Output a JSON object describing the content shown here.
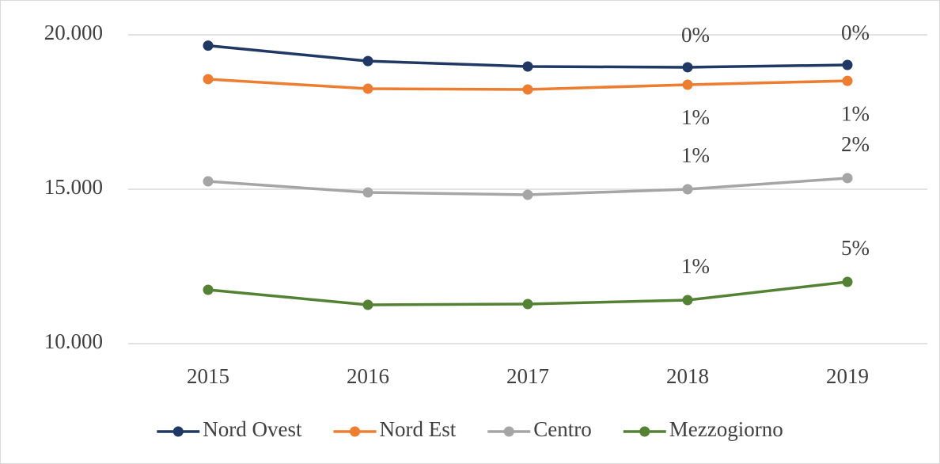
{
  "chart_data": {
    "type": "line",
    "categories": [
      "2015",
      "2016",
      "2017",
      "2018",
      "2019"
    ],
    "series": [
      {
        "name": "Nord Ovest",
        "color": "#203864",
        "values": [
          19650,
          19150,
          18975,
          18950,
          19025
        ],
        "annotations": [
          null,
          null,
          null,
          "0%",
          "0%"
        ]
      },
      {
        "name": "Nord Est",
        "color": "#ed7d31",
        "values": [
          18565,
          18255,
          18230,
          18385,
          18510
        ],
        "annotations": [
          null,
          null,
          null,
          "1%",
          "1%"
        ]
      },
      {
        "name": "Centro",
        "color": "#a5a5a5",
        "values": [
          15256,
          14897,
          14820,
          15000,
          15360
        ],
        "annotations": [
          null,
          null,
          null,
          "1%",
          "2%"
        ]
      },
      {
        "name": "Mezzogiorno",
        "color": "#548235",
        "values": [
          11744,
          11257,
          11282,
          11410,
          12000
        ],
        "annotations": [
          null,
          null,
          null,
          "1%",
          "5%"
        ]
      }
    ],
    "ylim": [
      10000,
      20000
    ],
    "yticks": [
      {
        "value": 10000,
        "label": "10.000"
      },
      {
        "value": 15000,
        "label": "15.000"
      },
      {
        "value": 20000,
        "label": "20.000"
      }
    ],
    "grid": true,
    "legend": "bottom"
  }
}
